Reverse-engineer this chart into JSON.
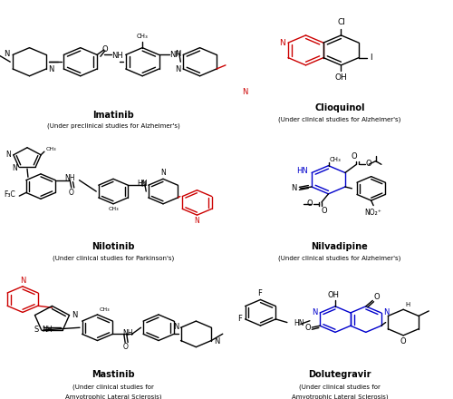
{
  "bg_color": "#ffffff",
  "red_color": "#cc0000",
  "blue_color": "#0000cc",
  "black_color": "#000000",
  "drugs": [
    {
      "name": "Imatinib",
      "subtitle": "(Under preclinical studies for Alzheimer's)",
      "col": 0,
      "row": 0
    },
    {
      "name": "Clioquinol",
      "subtitle": "(Under clinical studies for Alzheimer's)",
      "col": 1,
      "row": 0
    },
    {
      "name": "Nilotinib",
      "subtitle": "(Under clinical studies for Parkinson's)",
      "col": 0,
      "row": 1
    },
    {
      "name": "Nilvadipine",
      "subtitle": "(Under clinical studies for Alzheimer's)",
      "col": 1,
      "row": 1
    },
    {
      "name": "Mastinib",
      "subtitle": "(Under clinical studies for\nAmyotrophic Lateral Sclerosis)",
      "col": 0,
      "row": 2
    },
    {
      "name": "Dolutegravir",
      "subtitle": "(Under clinical studies for\nAmyotrophic Lateral Sclerosis)",
      "col": 1,
      "row": 2
    }
  ]
}
